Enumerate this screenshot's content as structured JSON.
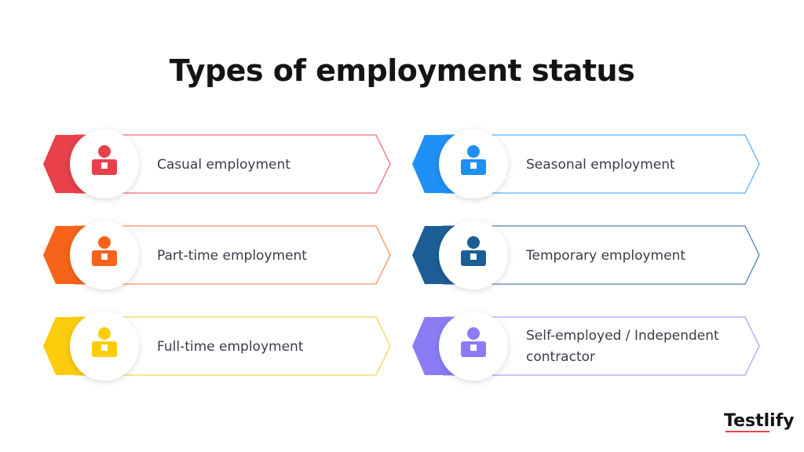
{
  "title": "Types of employment status",
  "items": [
    {
      "label": "Casual employment"
    },
    {
      "label": "Seasonal employment"
    },
    {
      "label": "Part-time employment"
    },
    {
      "label": "Temporary employment"
    },
    {
      "label": "Full-time employment"
    },
    {
      "label": "Self-employed / Independent contractor"
    }
  ],
  "brand": "Testlify"
}
